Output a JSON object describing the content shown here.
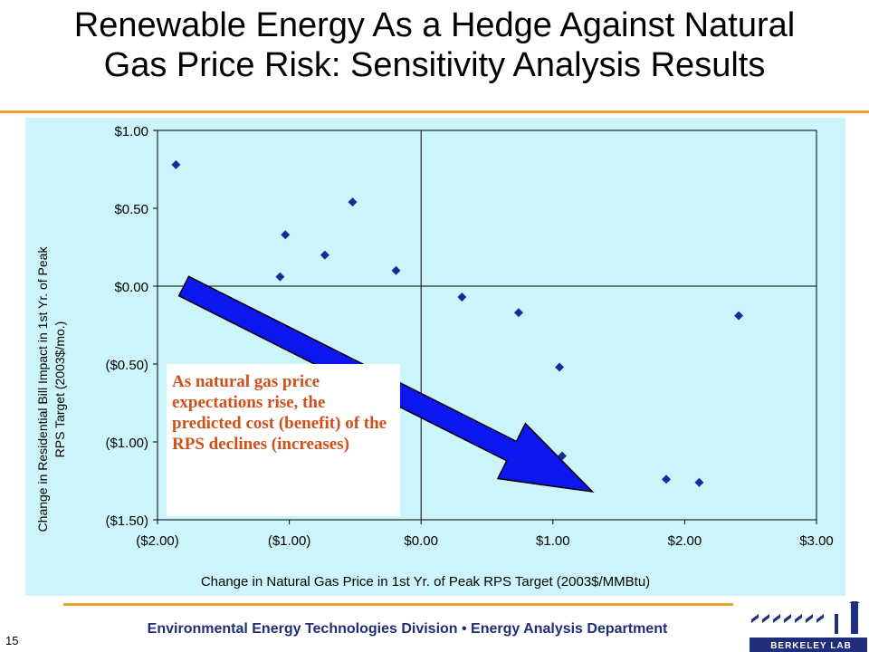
{
  "slide": {
    "title_line1": "Renewable Energy As a Hedge Against Natural",
    "title_line2": "Gas Price Risk: Sensitivity Analysis Results",
    "page_number": "15",
    "footer": "Environmental Energy Technologies Division • Energy Analysis Department",
    "logo_text": "BERKELEY LAB",
    "accent_color": "#f0a030",
    "plot_background": "#ccf5fb",
    "annotation_color": "#d0501a"
  },
  "chart_data": {
    "type": "scatter",
    "xlabel": "Change in Natural Gas Price in 1st Yr. of Peak RPS Target (2003$/MMBtu)",
    "ylabel_line1": "Change in Residential Bill Impact in 1st Yr. of Peak",
    "ylabel_line2": "RPS Target (2003$/mo.)",
    "xlim": [
      -2.0,
      3.0
    ],
    "ylim": [
      -1.5,
      1.0
    ],
    "x_ticks": [
      -2,
      -1,
      0,
      1,
      2,
      3
    ],
    "x_tick_labels": [
      "($2.00)",
      "($1.00)",
      "$0.00",
      "$1.00",
      "$2.00",
      "$3.00"
    ],
    "y_ticks": [
      1.0,
      0.5,
      0.0,
      -0.5,
      -1.0,
      -1.5
    ],
    "y_tick_labels": [
      "$1.00",
      "$0.50",
      "$0.00",
      "($0.50)",
      "($1.00)",
      "($1.50)"
    ],
    "grid": false,
    "marker_color": "#1a2a9a",
    "points": [
      {
        "x": -1.86,
        "y": 0.78
      },
      {
        "x": -1.03,
        "y": 0.33
      },
      {
        "x": -1.07,
        "y": 0.06
      },
      {
        "x": -0.73,
        "y": 0.2
      },
      {
        "x": -0.52,
        "y": 0.54
      },
      {
        "x": -0.19,
        "y": 0.1
      },
      {
        "x": 0.31,
        "y": -0.07
      },
      {
        "x": 0.74,
        "y": -0.17
      },
      {
        "x": 1.05,
        "y": -0.52
      },
      {
        "x": 1.07,
        "y": -1.09
      },
      {
        "x": 1.86,
        "y": -1.24
      },
      {
        "x": 2.11,
        "y": -1.26
      },
      {
        "x": 2.41,
        "y": -0.19
      }
    ],
    "trend_arrow": {
      "x1": -1.8,
      "y1": 0.0,
      "x2": 1.3,
      "y2": -1.32,
      "color": "#0b17ee"
    },
    "annotation": "As natural gas price expectations rise, the predicted cost (benefit) of the RPS declines (increases)"
  }
}
